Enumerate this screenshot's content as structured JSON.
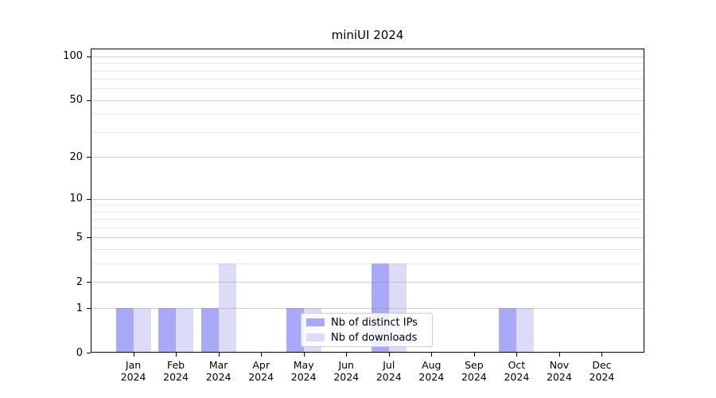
{
  "title": "miniUI 2024",
  "chart_data": {
    "type": "bar",
    "title": "miniUI 2024",
    "categories": [
      "Jan",
      "Feb",
      "Mar",
      "Apr",
      "May",
      "Jun",
      "Jul",
      "Aug",
      "Sep",
      "Oct",
      "Nov",
      "Dec"
    ],
    "year": "2024",
    "series": [
      {
        "name": "Nb of distinct IPs",
        "color": "#a9a9f7",
        "values": [
          1,
          1,
          1,
          0,
          1,
          0,
          3,
          0,
          0,
          1,
          0,
          0
        ]
      },
      {
        "name": "Nb of downloads",
        "color": "#dcdcf8",
        "values": [
          1,
          1,
          3,
          0,
          1,
          0,
          3,
          0,
          0,
          1,
          0,
          0
        ]
      }
    ],
    "y_ticks": [
      0,
      1,
      2,
      5,
      10,
      20,
      50,
      100
    ],
    "gridline_values": [
      1,
      2,
      3,
      4,
      5,
      6,
      7,
      8,
      9,
      10,
      20,
      30,
      40,
      50,
      60,
      70,
      80,
      90,
      100
    ],
    "scale": "log10(1+x)",
    "ylim": [
      0,
      112
    ],
    "xlabel": "",
    "ylabel": "",
    "grid": true,
    "legend_position": "lower center"
  }
}
